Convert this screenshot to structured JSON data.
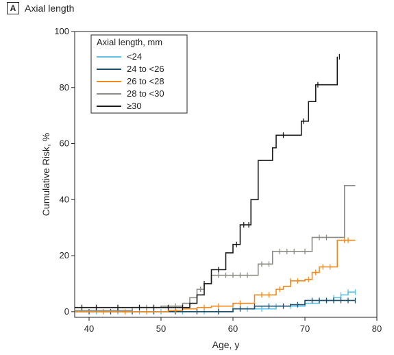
{
  "panel": {
    "letter": "A",
    "title": "Axial length"
  },
  "chart_data": {
    "type": "line",
    "title": "Axial length",
    "xlabel": "Age, y",
    "ylabel": "Cumulative Risk, %",
    "xlim": [
      38,
      80
    ],
    "ylim": [
      -2,
      100
    ],
    "xticks": [
      40,
      50,
      60,
      70,
      80
    ],
    "yticks": [
      0,
      20,
      40,
      60,
      80,
      100
    ],
    "grid": false,
    "legend": {
      "title": "Axial length, mm",
      "placement": "top-left"
    },
    "series": [
      {
        "name": "<24",
        "color": "#5bc3e8",
        "x": [
          38,
          55,
          60,
          66,
          70,
          72,
          74,
          75,
          76,
          77
        ],
        "y": [
          0,
          0,
          1,
          2,
          3,
          4,
          5,
          6,
          7,
          7
        ],
        "censor": [
          41,
          44,
          47,
          50,
          53,
          56,
          58,
          60,
          62,
          64,
          66,
          68,
          70,
          72,
          73,
          74,
          75,
          76,
          77
        ]
      },
      {
        "name": "24 to <26",
        "color": "#1d4f6b",
        "x": [
          38,
          55,
          60,
          63,
          68,
          70,
          77
        ],
        "y": [
          0,
          0,
          1,
          2,
          2.5,
          4,
          4
        ],
        "censor": [
          40,
          43,
          46,
          49,
          52,
          55,
          58,
          61,
          63,
          65,
          67,
          69,
          71,
          72,
          73,
          74,
          75,
          76,
          77
        ]
      },
      {
        "name": "26 to <28",
        "color": "#f0891e",
        "x": [
          38,
          51,
          53,
          55,
          57,
          60,
          63,
          66,
          67,
          68,
          70,
          71,
          72,
          73,
          74.5,
          75.5,
          77
        ],
        "y": [
          0,
          0.5,
          1,
          1.5,
          2,
          3,
          6,
          8,
          9,
          11,
          11.5,
          14,
          16,
          16,
          25.5,
          25.5,
          25.5
        ],
        "censor": [
          42,
          45,
          48,
          52,
          56,
          58,
          61,
          64,
          65,
          66.5,
          68,
          69,
          70.5,
          71.5,
          72.5,
          73.5,
          75.5,
          76
        ]
      },
      {
        "name": "28 to <30",
        "color": "#8a8d86",
        "x": [
          38,
          46,
          50,
          53,
          54,
          55,
          56,
          57,
          62.5,
          63.5,
          65.5,
          71,
          75.5,
          75.5,
          77
        ],
        "y": [
          0.5,
          1.5,
          2,
          3,
          5,
          8,
          10,
          13,
          13,
          17,
          21.5,
          26.5,
          26.5,
          45,
          45
        ],
        "censor": [
          44,
          48,
          52,
          55.5,
          58,
          59,
          60,
          61,
          62,
          64,
          65,
          66.5,
          67.5,
          68.5,
          70,
          72,
          73
        ]
      },
      {
        "name": "≥30",
        "color": "#1a1a1a",
        "x": [
          38,
          53.5,
          54,
          55,
          56,
          57,
          59,
          60,
          61,
          62.5,
          63.5,
          65.5,
          66,
          67,
          69.5,
          70.5,
          71.5,
          74.5
        ],
        "y": [
          1.5,
          1.5,
          3,
          6,
          10,
          15,
          21,
          24,
          31,
          40,
          54,
          58.5,
          63,
          63,
          68,
          75,
          81,
          91
        ],
        "censor": [
          39,
          41,
          44,
          47,
          49,
          51,
          53,
          56,
          58,
          60.5,
          61.5,
          62.2,
          67,
          69.8,
          71.8,
          74.8
        ]
      }
    ]
  }
}
